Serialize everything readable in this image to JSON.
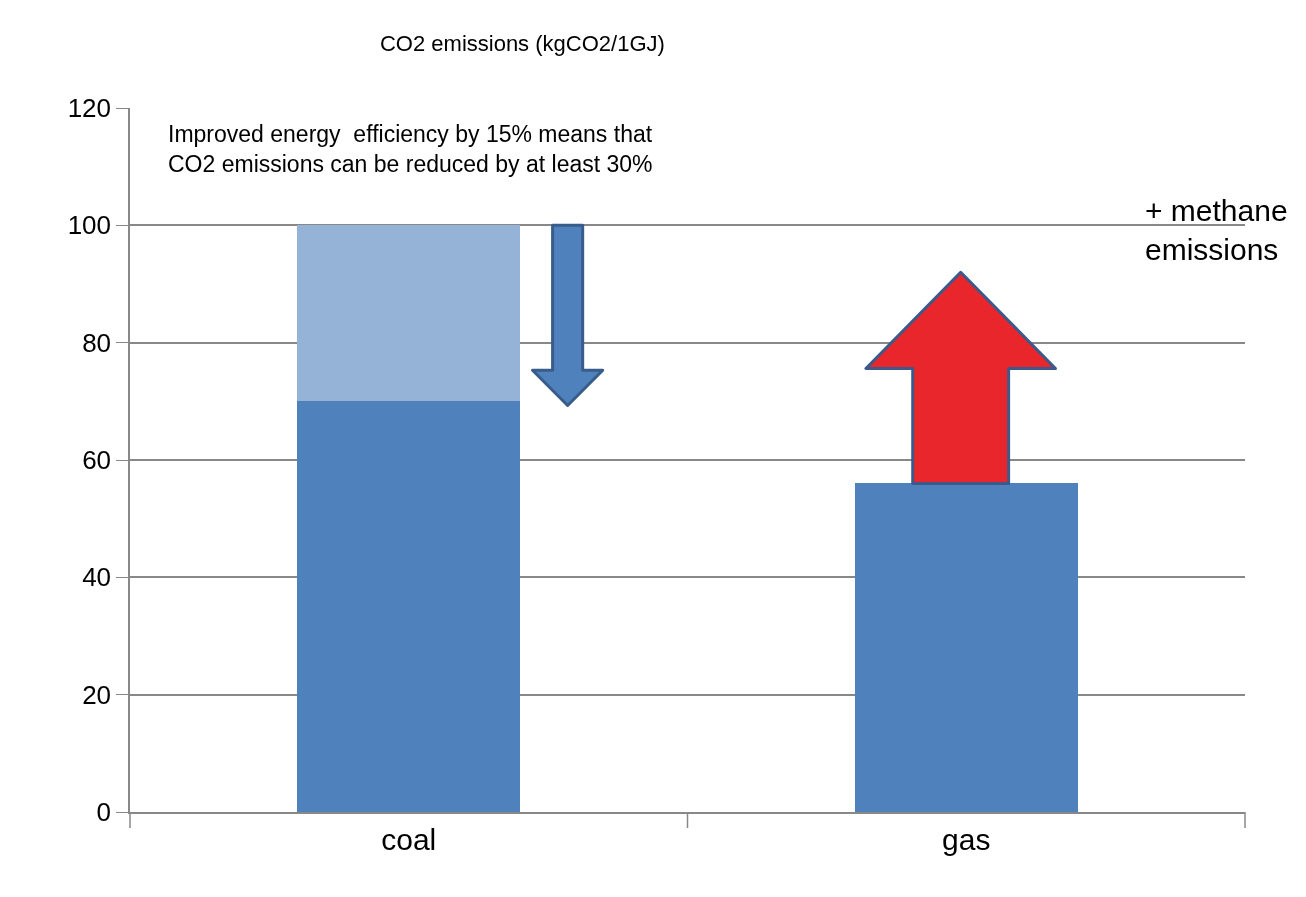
{
  "chart_data": {
    "type": "bar",
    "title": "CO2 emissions (kgCO2/1GJ)",
    "categories": [
      "coal",
      "gas"
    ],
    "stacked": true,
    "series": [
      {
        "color": "#4f81bd",
        "values": [
          70,
          56
        ]
      },
      {
        "color": "#95b3d7",
        "values": [
          30,
          null
        ]
      }
    ],
    "ylim": [
      0,
      120
    ],
    "yticks": [
      0,
      20,
      40,
      60,
      80,
      100,
      120
    ],
    "grid": "y",
    "annotations": [
      "Improved energy  efficiency by 15% means that\nCO2 emissions can be reduced by at least 30%",
      "+ methane\nemissions"
    ]
  }
}
